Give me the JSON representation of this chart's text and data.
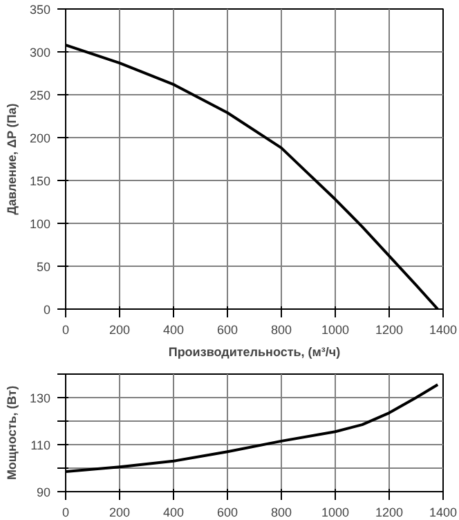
{
  "chart_data": [
    {
      "type": "line",
      "ylabel": "Давление, ΔP (Па)",
      "xlabel": "Производительность, (м³/ч)",
      "x": [
        0,
        200,
        400,
        600,
        800,
        900,
        1000,
        1100,
        1200,
        1300,
        1380
      ],
      "series": [
        {
          "color": "#000000",
          "values": [
            308,
            287,
            262,
            229,
            188,
            158,
            128,
            96,
            62,
            28,
            0
          ]
        }
      ],
      "xlim": [
        0,
        1400
      ],
      "xticks": [
        0,
        200,
        400,
        600,
        800,
        1000,
        1200,
        1400
      ],
      "ylim": [
        0,
        350
      ],
      "yticks": [
        0,
        50,
        100,
        150,
        200,
        250,
        300,
        350
      ],
      "grid": true,
      "marker": "none",
      "line_style": "solid"
    },
    {
      "type": "line",
      "ylabel": "Мощность, (Вт)",
      "x": [
        0,
        200,
        400,
        600,
        800,
        1000,
        1100,
        1200,
        1300,
        1380
      ],
      "series": [
        {
          "color": "#000000",
          "values": [
            98.5,
            100.5,
            103,
            107,
            111.5,
            115.5,
            118.5,
            123.5,
            130,
            135.5
          ]
        }
      ],
      "xlim": [
        0,
        1400
      ],
      "xticks": [
        0,
        200,
        400,
        600,
        800,
        1000,
        1200,
        1400
      ],
      "ylim": [
        90,
        140
      ],
      "yticks": [
        90,
        {
          "value": 100,
          "label": null
        },
        110,
        {
          "value": 120,
          "label": null
        },
        130,
        {
          "value": 140,
          "label": null
        }
      ],
      "grid": true,
      "marker": "none",
      "line_style": "solid"
    }
  ]
}
